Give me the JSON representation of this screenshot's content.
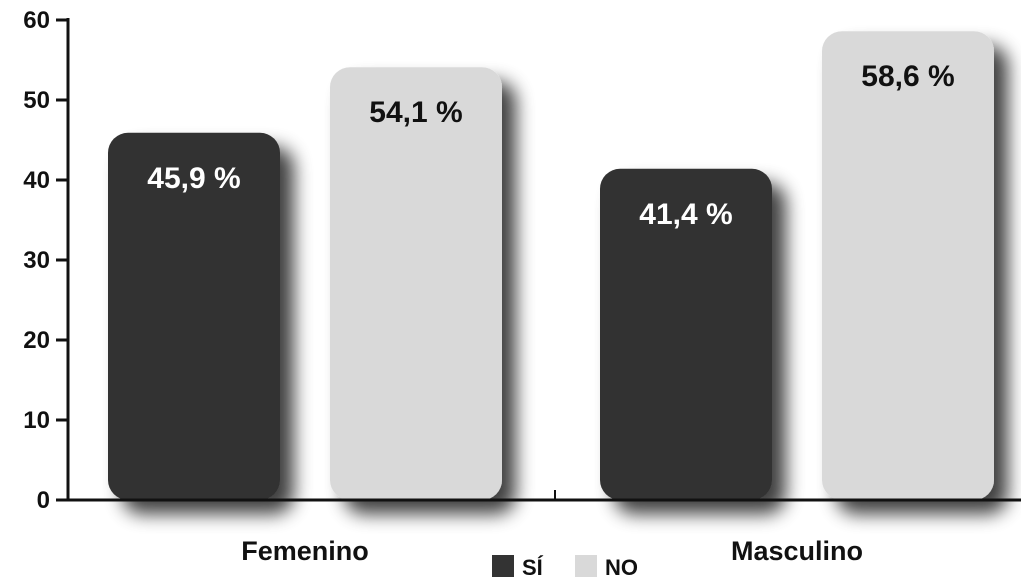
{
  "chart_data": {
    "type": "bar",
    "categories": [
      "Femenino",
      "Masculino"
    ],
    "series": [
      {
        "name": "SÍ",
        "values": [
          45.9,
          41.4
        ],
        "color": "#333333",
        "label_color": "#ffffff"
      },
      {
        "name": "NO",
        "values": [
          54.1,
          58.6
        ],
        "color": "#d9d9d9",
        "label_color": "#111111"
      }
    ],
    "data_labels": [
      [
        "45,9 %",
        "41,4 %"
      ],
      [
        "54,1 %",
        "58,6 %"
      ]
    ],
    "ylim": [
      0,
      60
    ],
    "yticks": [
      0,
      10,
      20,
      30,
      40,
      50,
      60
    ],
    "title": "",
    "xlabel": "",
    "ylabel": "",
    "grid": false,
    "legend": {
      "position": "bottom-center"
    }
  }
}
